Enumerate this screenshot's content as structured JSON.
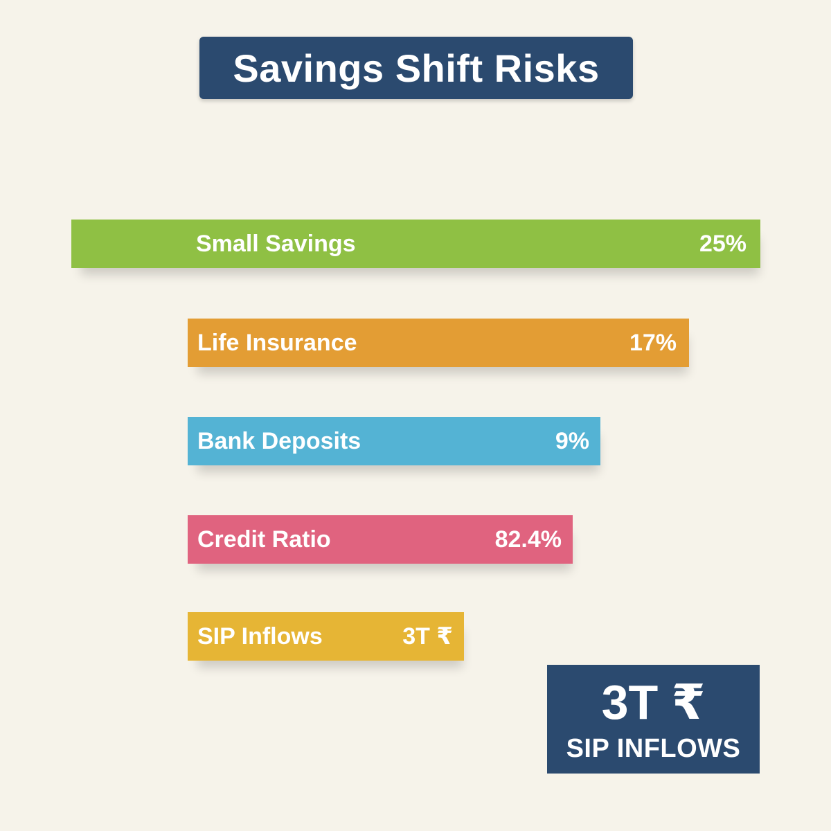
{
  "chart_data": {
    "type": "bar",
    "title": "Savings Shift Risks",
    "categories": [
      "Small Savings",
      "Life Insurance",
      "Bank Deposits",
      "Credit Ratio",
      "SIP Inflows"
    ],
    "value_labels": [
      "25%",
      "17%",
      "9%",
      "82.4%",
      "3T ₹"
    ],
    "colors": [
      "#8fc044",
      "#e39d34",
      "#54b3d4",
      "#e0637f",
      "#e6b535"
    ]
  },
  "callout": {
    "value": "3T ₹",
    "label": "SIP INFLOWS"
  },
  "colors": {
    "background": "#f6f3ea",
    "title_box": "#2b4a6f",
    "callout_box": "#2b4a6f",
    "text": "#ffffff"
  }
}
